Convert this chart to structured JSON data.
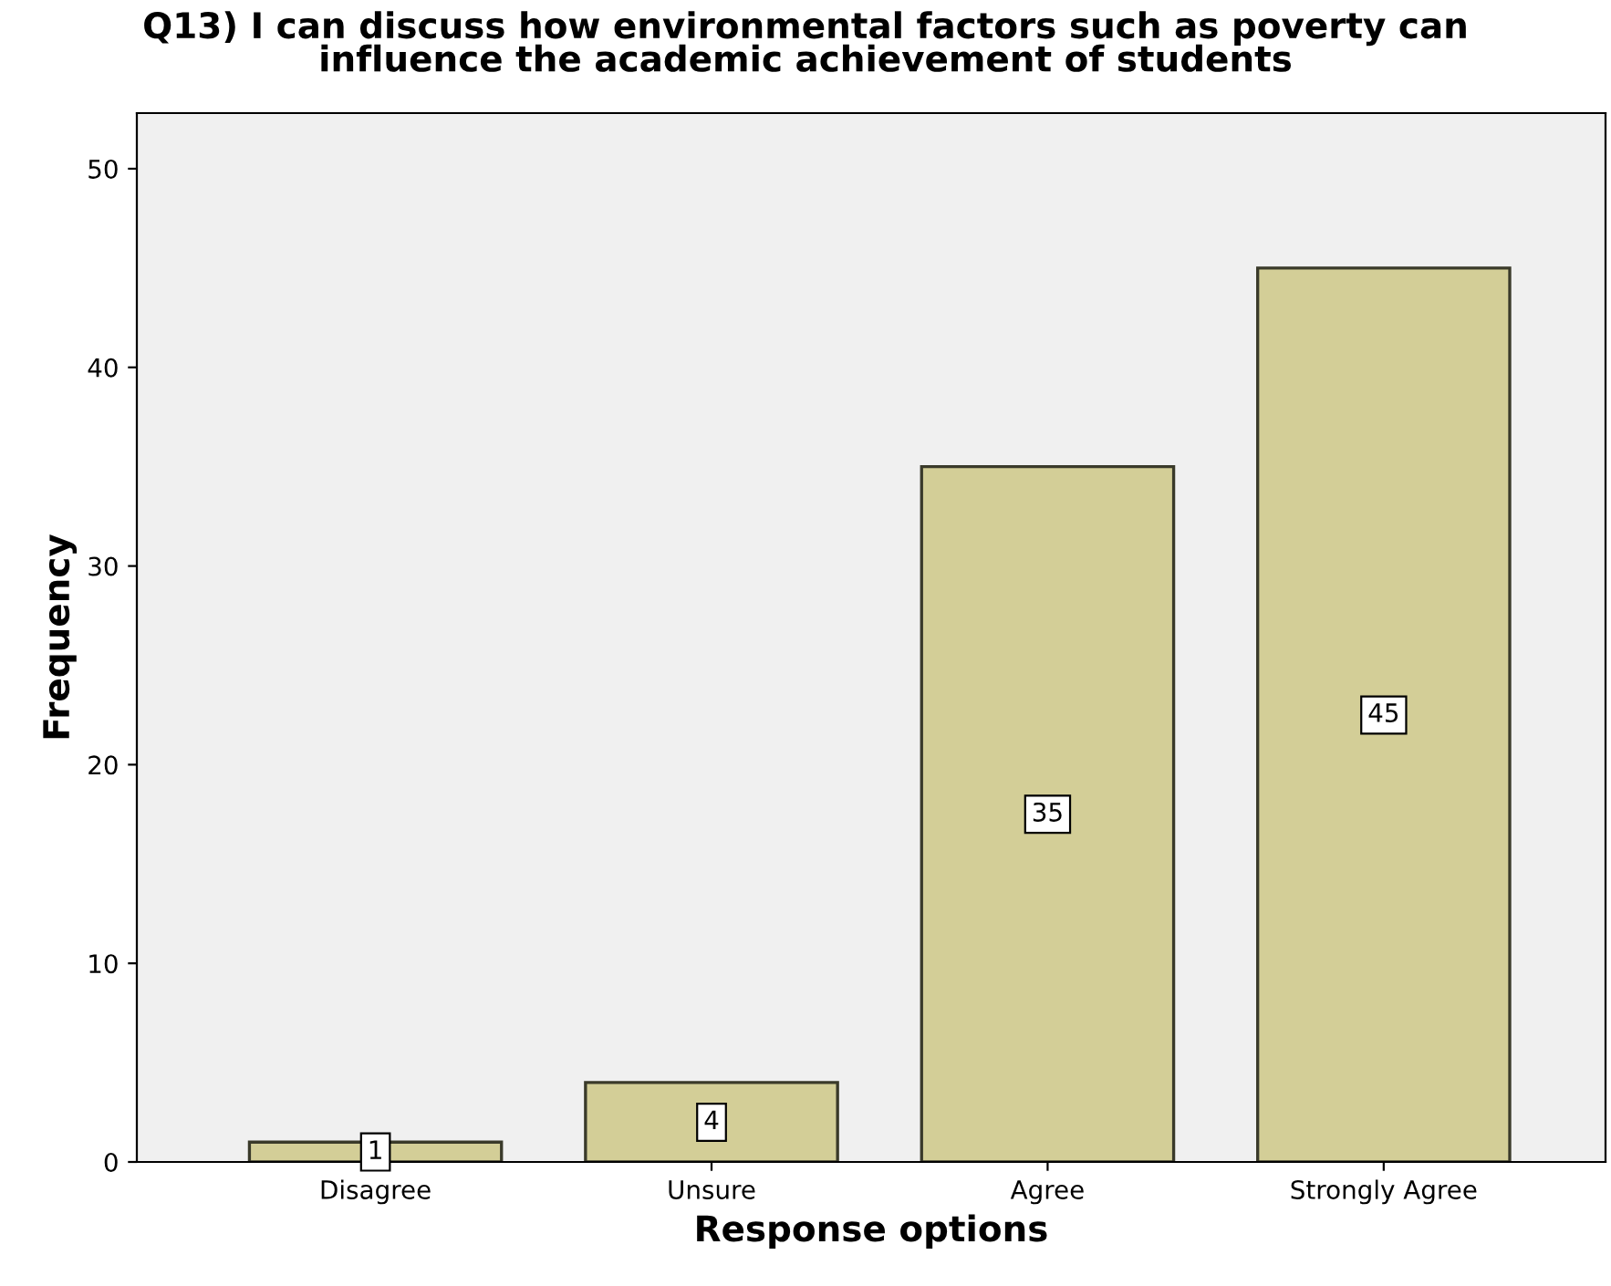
{
  "chart_data": {
    "type": "bar",
    "title": "Q13) I can discuss how environmental factors such as poverty can\ninfluence the academic achievement of students",
    "xlabel": "Response options",
    "ylabel": "Frequency",
    "categories": [
      "Disagree",
      "Unsure",
      "Agree",
      "Strongly Agree"
    ],
    "values": [
      1,
      4,
      35,
      45
    ],
    "color": "#d3ce97",
    "ylim": [
      0,
      52.8
    ],
    "yticks": [
      0,
      10,
      20,
      30,
      40,
      50
    ],
    "grid": false,
    "data_labels": true
  }
}
